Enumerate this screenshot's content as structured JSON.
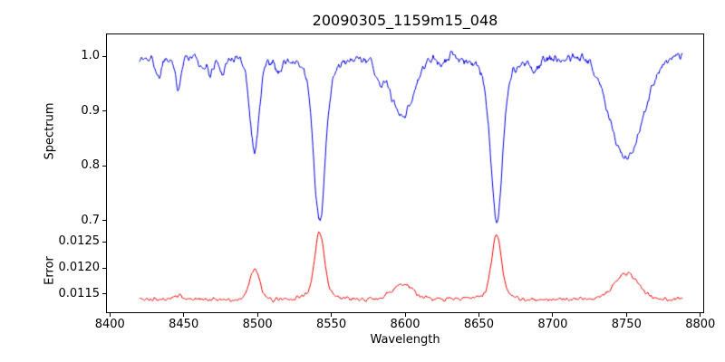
{
  "chart_data": [
    {
      "type": "line",
      "title": "20090305_1159m15_048",
      "ylabel": "Spectrum",
      "color": "#0000dd",
      "x_range": [
        8420,
        8788
      ],
      "step": 0.5,
      "xlim": [
        8398,
        8802
      ],
      "ylim": [
        0.685,
        1.04
      ],
      "grid": false,
      "legend": "none",
      "yticks": [
        {
          "value": 0.7,
          "label": "0.7"
        },
        {
          "value": 0.8,
          "label": "0.8"
        },
        {
          "value": 0.9,
          "label": "0.9"
        },
        {
          "value": 1.0,
          "label": "1.0"
        }
      ],
      "base": 0.998,
      "noise": 0.009,
      "wiggle": 0.006,
      "seed": 1337,
      "features": [
        {
          "center": 8433,
          "amp": -0.035,
          "sigma": 1.8
        },
        {
          "center": 8446,
          "amp": -0.055,
          "sigma": 2.0
        },
        {
          "center": 8462,
          "amp": -0.025,
          "sigma": 1.8
        },
        {
          "center": 8468,
          "amp": -0.03,
          "sigma": 1.8
        },
        {
          "center": 8476,
          "amp": -0.025,
          "sigma": 2.0
        },
        {
          "center": 8498,
          "amp": -0.165,
          "sigma": 3.2
        },
        {
          "center": 8514,
          "amp": -0.02,
          "sigma": 2.0
        },
        {
          "center": 8542,
          "amp": -0.27,
          "sigma": 3.8
        },
        {
          "center": 8542,
          "amp": -0.035,
          "sigma": 11
        },
        {
          "center": 8582,
          "amp": -0.03,
          "sigma": 3.0
        },
        {
          "center": 8598,
          "amp": -0.105,
          "sigma": 8.0
        },
        {
          "center": 8625,
          "amp": -0.02,
          "sigma": 3.0
        },
        {
          "center": 8662,
          "amp": -0.26,
          "sigma": 3.8
        },
        {
          "center": 8662,
          "amp": -0.035,
          "sigma": 11
        },
        {
          "center": 8688,
          "amp": -0.02,
          "sigma": 3.0
        },
        {
          "center": 8750,
          "amp": -0.185,
          "sigma": 11
        }
      ]
    },
    {
      "type": "line",
      "ylabel": "Error",
      "xlabel": "Wavelength",
      "color": "#ee0000",
      "x_range": [
        8420,
        8788
      ],
      "step": 0.5,
      "xlim": [
        8398,
        8802
      ],
      "ylim": [
        0.01115,
        0.01275
      ],
      "grid": false,
      "legend": "none",
      "yticks": [
        {
          "value": 0.0115,
          "label": "0.0115"
        },
        {
          "value": 0.012,
          "label": "0.0120"
        },
        {
          "value": 0.0125,
          "label": "0.0125"
        }
      ],
      "xticks": [
        {
          "value": 8400,
          "label": "8400"
        },
        {
          "value": 8450,
          "label": "8450"
        },
        {
          "value": 8500,
          "label": "8500"
        },
        {
          "value": 8550,
          "label": "8550"
        },
        {
          "value": 8600,
          "label": "8600"
        },
        {
          "value": 8650,
          "label": "8650"
        },
        {
          "value": 8700,
          "label": "8700"
        },
        {
          "value": 8750,
          "label": "8750"
        },
        {
          "value": 8800,
          "label": "8800"
        }
      ],
      "base": 0.0114,
      "noise": 4e-05,
      "wiggle": 1e-05,
      "seed": 2024,
      "features": [
        {
          "center": 8446,
          "amp": 6e-05,
          "sigma": 3.0
        },
        {
          "center": 8498,
          "amp": 0.00058,
          "sigma": 3.5
        },
        {
          "center": 8542,
          "amp": 0.00115,
          "sigma": 3.2
        },
        {
          "center": 8542,
          "amp": 0.00012,
          "sigma": 9.0
        },
        {
          "center": 8598,
          "amp": 0.00028,
          "sigma": 7.0
        },
        {
          "center": 8662,
          "amp": 0.00115,
          "sigma": 3.2
        },
        {
          "center": 8662,
          "amp": 0.00012,
          "sigma": 9.0
        },
        {
          "center": 8750,
          "amp": 0.0005,
          "sigma": 8.0
        }
      ]
    }
  ]
}
